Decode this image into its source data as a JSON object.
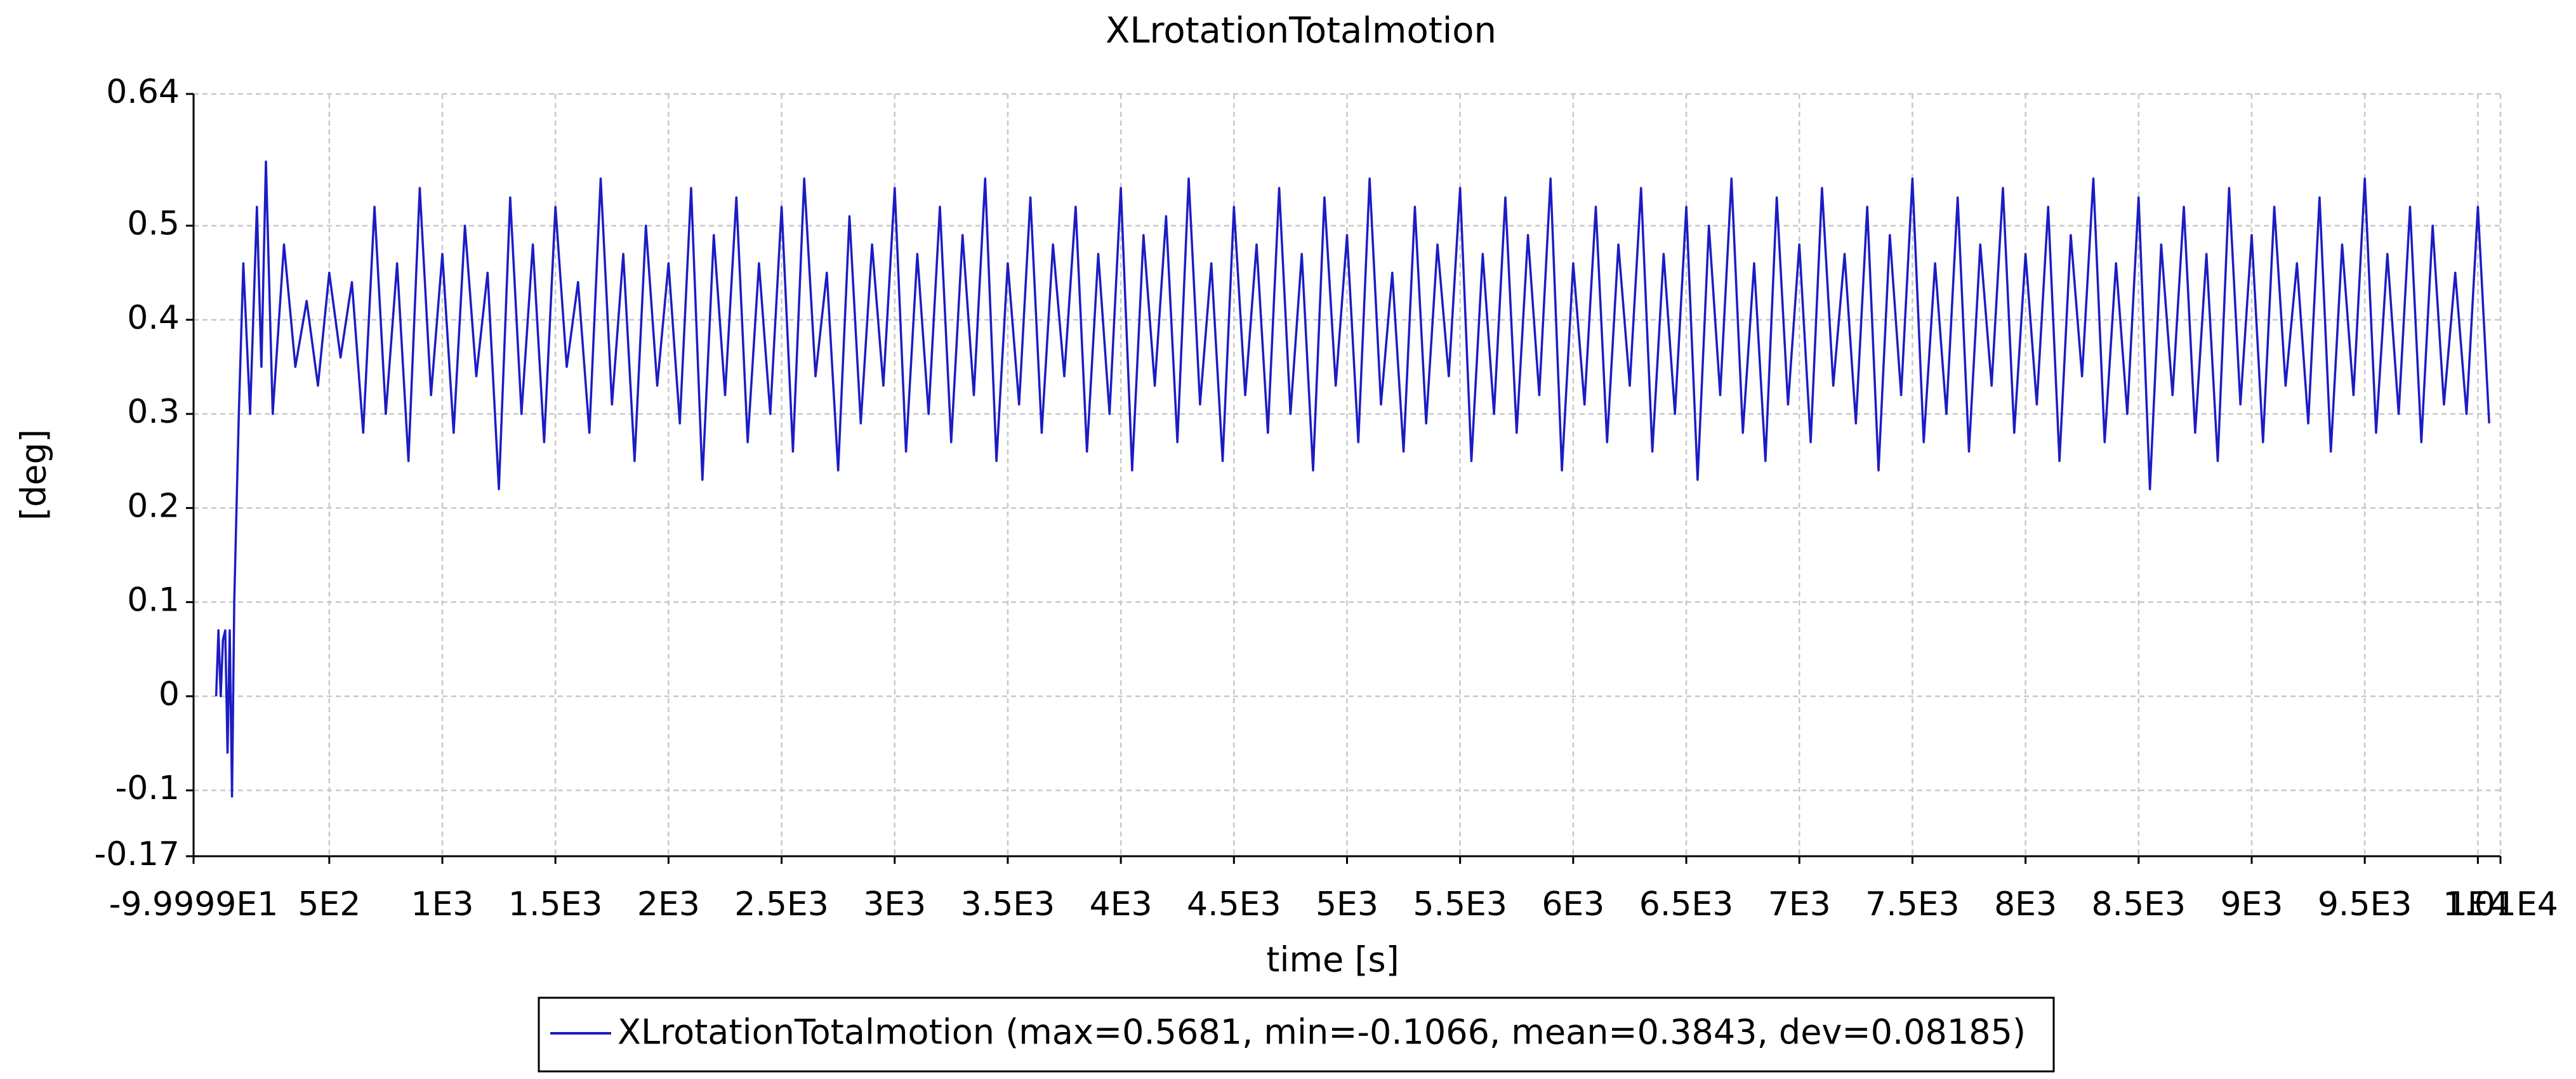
{
  "chart_data": {
    "type": "line",
    "title": "XLrotationTotalmotion",
    "xlabel": "time [s]",
    "ylabel": "[deg]",
    "xlim": [
      -99.999,
      10100
    ],
    "ylim": [
      -0.17,
      0.64
    ],
    "xticks": [
      {
        "value": -99.999,
        "label": "-9.9999E1"
      },
      {
        "value": 500,
        "label": "5E2"
      },
      {
        "value": 1000,
        "label": "1E3"
      },
      {
        "value": 1500,
        "label": "1.5E3"
      },
      {
        "value": 2000,
        "label": "2E3"
      },
      {
        "value": 2500,
        "label": "2.5E3"
      },
      {
        "value": 3000,
        "label": "3E3"
      },
      {
        "value": 3500,
        "label": "3.5E3"
      },
      {
        "value": 4000,
        "label": "4E3"
      },
      {
        "value": 4500,
        "label": "4.5E3"
      },
      {
        "value": 5000,
        "label": "5E3"
      },
      {
        "value": 5500,
        "label": "5.5E3"
      },
      {
        "value": 6000,
        "label": "6E3"
      },
      {
        "value": 6500,
        "label": "6.5E3"
      },
      {
        "value": 7000,
        "label": "7E3"
      },
      {
        "value": 7500,
        "label": "7.5E3"
      },
      {
        "value": 8000,
        "label": "8E3"
      },
      {
        "value": 8500,
        "label": "8.5E3"
      },
      {
        "value": 9000,
        "label": "9E3"
      },
      {
        "value": 9500,
        "label": "9.5E3"
      },
      {
        "value": 10000,
        "label": "1E4"
      },
      {
        "value": 10100,
        "label": "1.01E4"
      }
    ],
    "yticks": [
      -0.17,
      -0.1,
      0,
      0.1,
      0.2,
      0.3,
      0.4,
      0.5,
      0.64
    ],
    "grid": true,
    "legend": "bottom",
    "x": [
      0,
      10,
      20,
      30,
      40,
      50,
      60,
      70,
      80,
      100,
      120,
      150,
      180,
      200,
      220,
      250,
      300,
      350,
      400,
      450,
      500,
      550,
      600,
      650,
      700,
      750,
      800,
      850,
      900,
      950,
      1000,
      1050,
      1100,
      1150,
      1200,
      1250,
      1300,
      1350,
      1400,
      1450,
      1500,
      1550,
      1600,
      1650,
      1700,
      1750,
      1800,
      1850,
      1900,
      1950,
      2000,
      2050,
      2100,
      2150,
      2200,
      2250,
      2300,
      2350,
      2400,
      2450,
      2500,
      2550,
      2600,
      2650,
      2700,
      2750,
      2800,
      2850,
      2900,
      2950,
      3000,
      3050,
      3100,
      3150,
      3200,
      3250,
      3300,
      3350,
      3400,
      3450,
      3500,
      3550,
      3600,
      3650,
      3700,
      3750,
      3800,
      3850,
      3900,
      3950,
      4000,
      4050,
      4100,
      4150,
      4200,
      4250,
      4300,
      4350,
      4400,
      4450,
      4500,
      4550,
      4600,
      4650,
      4700,
      4750,
      4800,
      4850,
      4900,
      4950,
      5000,
      5050,
      5100,
      5150,
      5200,
      5250,
      5300,
      5350,
      5400,
      5450,
      5500,
      5550,
      5600,
      5650,
      5700,
      5750,
      5800,
      5850,
      5900,
      5950,
      6000,
      6050,
      6100,
      6150,
      6200,
      6250,
      6300,
      6350,
      6400,
      6450,
      6500,
      6550,
      6600,
      6650,
      6700,
      6750,
      6800,
      6850,
      6900,
      6950,
      7000,
      7050,
      7100,
      7150,
      7200,
      7250,
      7300,
      7350,
      7400,
      7450,
      7500,
      7550,
      7600,
      7650,
      7700,
      7750,
      7800,
      7850,
      7900,
      7950,
      8000,
      8050,
      8100,
      8150,
      8200,
      8250,
      8300,
      8350,
      8400,
      8450,
      8500,
      8550,
      8600,
      8650,
      8700,
      8750,
      8800,
      8850,
      8900,
      8950,
      9000,
      9050,
      9100,
      9150,
      9200,
      9250,
      9300,
      9350,
      9400,
      9450,
      9500,
      9550,
      9600,
      9650,
      9700,
      9750,
      9800,
      9850,
      9900,
      9950,
      10000,
      10050
    ],
    "series": [
      {
        "name": "XLrotationTotalmotion (max=0.5681, min=-0.1066, mean=0.3843, dev=0.08185)",
        "color": "#1c1cc4",
        "values": [
          0,
          0.07,
          0,
          0.06,
          0.07,
          -0.06,
          0.07,
          -0.1066,
          0.1,
          0.3,
          0.46,
          0.3,
          0.52,
          0.35,
          0.5681,
          0.3,
          0.48,
          0.35,
          0.42,
          0.33,
          0.45,
          0.36,
          0.44,
          0.28,
          0.52,
          0.3,
          0.46,
          0.25,
          0.54,
          0.32,
          0.47,
          0.28,
          0.5,
          0.34,
          0.45,
          0.22,
          0.53,
          0.3,
          0.48,
          0.27,
          0.52,
          0.35,
          0.44,
          0.28,
          0.55,
          0.31,
          0.47,
          0.25,
          0.5,
          0.33,
          0.46,
          0.29,
          0.54,
          0.23,
          0.49,
          0.32,
          0.53,
          0.27,
          0.46,
          0.3,
          0.52,
          0.26,
          0.55,
          0.34,
          0.45,
          0.24,
          0.51,
          0.29,
          0.48,
          0.33,
          0.54,
          0.26,
          0.47,
          0.3,
          0.52,
          0.27,
          0.49,
          0.32,
          0.55,
          0.25,
          0.46,
          0.31,
          0.53,
          0.28,
          0.48,
          0.34,
          0.52,
          0.26,
          0.47,
          0.3,
          0.54,
          0.24,
          0.49,
          0.33,
          0.51,
          0.27,
          0.55,
          0.31,
          0.46,
          0.25,
          0.52,
          0.32,
          0.48,
          0.28,
          0.54,
          0.3,
          0.47,
          0.24,
          0.53,
          0.33,
          0.49,
          0.27,
          0.55,
          0.31,
          0.45,
          0.26,
          0.52,
          0.29,
          0.48,
          0.34,
          0.54,
          0.25,
          0.47,
          0.3,
          0.53,
          0.28,
          0.49,
          0.32,
          0.55,
          0.24,
          0.46,
          0.31,
          0.52,
          0.27,
          0.48,
          0.33,
          0.54,
          0.26,
          0.47,
          0.3,
          0.52,
          0.23,
          0.5,
          0.32,
          0.55,
          0.28,
          0.46,
          0.25,
          0.53,
          0.31,
          0.48,
          0.27,
          0.54,
          0.33,
          0.47,
          0.29,
          0.52,
          0.24,
          0.49,
          0.32,
          0.55,
          0.27,
          0.46,
          0.3,
          0.53,
          0.26,
          0.48,
          0.33,
          0.54,
          0.28,
          0.47,
          0.31,
          0.52,
          0.25,
          0.49,
          0.34,
          0.55,
          0.27,
          0.46,
          0.3,
          0.53,
          0.22,
          0.48,
          0.32,
          0.52,
          0.28,
          0.47,
          0.25,
          0.54,
          0.31,
          0.49,
          0.27,
          0.52,
          0.33,
          0.46,
          0.29,
          0.53,
          0.26,
          0.48,
          0.32,
          0.55,
          0.28,
          0.47,
          0.3,
          0.52,
          0.27,
          0.5,
          0.31,
          0.45,
          0.3,
          0.52,
          0.29
        ]
      }
    ]
  }
}
